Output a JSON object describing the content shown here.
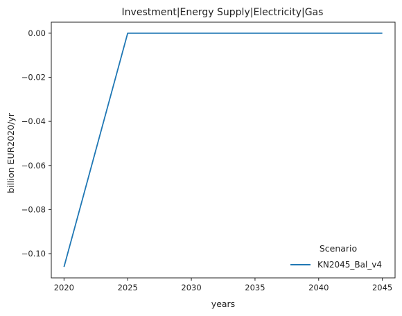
{
  "chart_data": {
    "type": "line",
    "title": "Investment|Energy Supply|Electricity|Gas",
    "xlabel": "years",
    "ylabel": "billion EUR2020/yr",
    "x": [
      2020,
      2025,
      2030,
      2035,
      2040,
      2045
    ],
    "xlim": [
      2019,
      2046
    ],
    "ylim": [
      -0.111,
      0.005
    ],
    "xticks": [
      2020,
      2025,
      2030,
      2035,
      2040,
      2045
    ],
    "yticks": [
      0.0,
      -0.02,
      -0.04,
      -0.06,
      -0.08,
      -0.1
    ],
    "ytick_labels": [
      "0.00",
      "−0.02",
      "−0.04",
      "−0.06",
      "−0.08",
      "−0.10"
    ],
    "grid": false,
    "legend": {
      "title": "Scenario",
      "placement": "lower-right"
    },
    "series": [
      {
        "name": "KN2045_Bal_v4",
        "color": "#1f77b4",
        "values": [
          -0.106,
          0.0,
          0.0,
          0.0,
          0.0,
          0.0
        ]
      }
    ]
  }
}
